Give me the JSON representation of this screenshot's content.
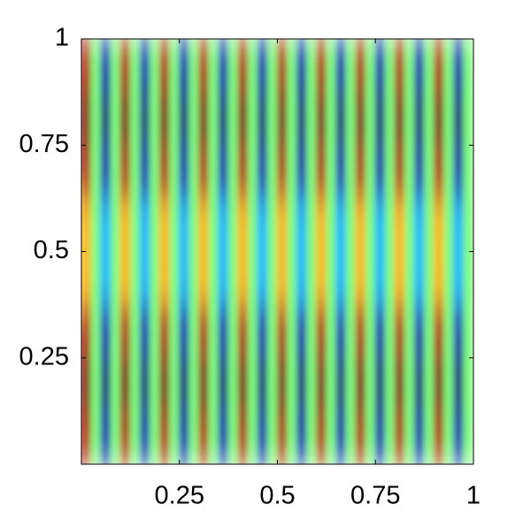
{
  "chart_data": {
    "type": "heatmap",
    "xlim": [
      0,
      1
    ],
    "ylim": [
      0,
      1
    ],
    "xticks": [
      0.25,
      0.5,
      0.75,
      1
    ],
    "yticks": [
      0.25,
      0.5,
      0.75,
      1
    ],
    "colormap": "jet",
    "zlim": [
      -1,
      1
    ],
    "z": [
      [
        0.9,
        0,
        -0.9,
        0,
        0.9,
        0,
        -0.9,
        0,
        0.9,
        0,
        -0.9,
        0,
        0.9,
        0,
        -0.9,
        0,
        0.9,
        0,
        -0.9,
        0,
        0.9,
        0,
        -0.9,
        0,
        0.9,
        0,
        -0.9,
        0,
        0.9,
        0,
        -0.9,
        0,
        0.9,
        0,
        -0.9,
        0,
        0.9,
        0,
        -0.9,
        0
      ],
      [
        1,
        0,
        -1,
        0,
        1,
        0,
        -1,
        0,
        1,
        0,
        -1,
        0,
        1,
        0,
        -1,
        0,
        1,
        0,
        -1,
        0,
        1,
        0,
        -1,
        0,
        1,
        0,
        -1,
        0,
        1,
        0,
        -1,
        0,
        1,
        0,
        -1,
        0,
        1,
        0,
        -1,
        0
      ],
      [
        0.9,
        0,
        -0.9,
        0,
        0.9,
        0,
        -0.9,
        0,
        0.9,
        0,
        -0.9,
        0,
        0.9,
        0,
        -0.9,
        0,
        0.9,
        0,
        -0.9,
        0,
        0.9,
        0,
        -0.9,
        0,
        0.9,
        0,
        -0.9,
        0,
        0.9,
        0,
        -0.9,
        0,
        0.9,
        0,
        -0.9,
        0,
        0.9,
        0,
        -0.9,
        0
      ],
      [
        0.4,
        0,
        -0.4,
        0,
        0.4,
        0,
        -0.4,
        0,
        0.4,
        0,
        -0.4,
        0,
        0.4,
        0,
        -0.4,
        0,
        0.4,
        0,
        -0.4,
        0,
        0.4,
        0,
        -0.4,
        0,
        0.4,
        0,
        -0.4,
        0,
        0.4,
        0,
        -0.4,
        0,
        0.4,
        0,
        -0.4,
        0,
        0.4,
        0,
        -0.4,
        0
      ],
      [
        0.4,
        0,
        -0.4,
        0,
        0.4,
        0,
        -0.4,
        0,
        0.4,
        0,
        -0.4,
        0,
        0.4,
        0,
        -0.4,
        0,
        0.4,
        0,
        -0.4,
        0,
        0.4,
        0,
        -0.4,
        0,
        0.4,
        0,
        -0.4,
        0,
        0.4,
        0,
        -0.4,
        0,
        0.4,
        0,
        -0.4,
        0,
        0.4,
        0,
        -0.4,
        0
      ],
      [
        0.9,
        0,
        -0.9,
        0,
        0.9,
        0,
        -0.9,
        0,
        0.9,
        0,
        -0.9,
        0,
        0.9,
        0,
        -0.9,
        0,
        0.9,
        0,
        -0.9,
        0,
        0.9,
        0,
        -0.9,
        0,
        0.9,
        0,
        -0.9,
        0,
        0.9,
        0,
        -0.9,
        0,
        0.9,
        0,
        -0.9,
        0,
        0.9,
        0,
        -0.9,
        0
      ],
      [
        1,
        0,
        -1,
        0,
        1,
        0,
        -1,
        0,
        1,
        0,
        -1,
        0,
        1,
        0,
        -1,
        0,
        1,
        0,
        -1,
        0,
        1,
        0,
        -1,
        0,
        1,
        0,
        -1,
        0,
        1,
        0,
        -1,
        0,
        1,
        0,
        -1,
        0,
        1,
        0,
        -1,
        0
      ],
      [
        0.9,
        0,
        -0.9,
        0,
        0.9,
        0,
        -0.9,
        0,
        0.9,
        0,
        -0.9,
        0,
        0.9,
        0,
        -0.9,
        0,
        0.9,
        0,
        -0.9,
        0,
        0.9,
        0,
        -0.9,
        0,
        0.9,
        0,
        -0.9,
        0,
        0.9,
        0,
        -0.9,
        0,
        0.9,
        0,
        -0.9,
        0,
        0.9,
        0,
        -0.9,
        0
      ]
    ]
  }
}
